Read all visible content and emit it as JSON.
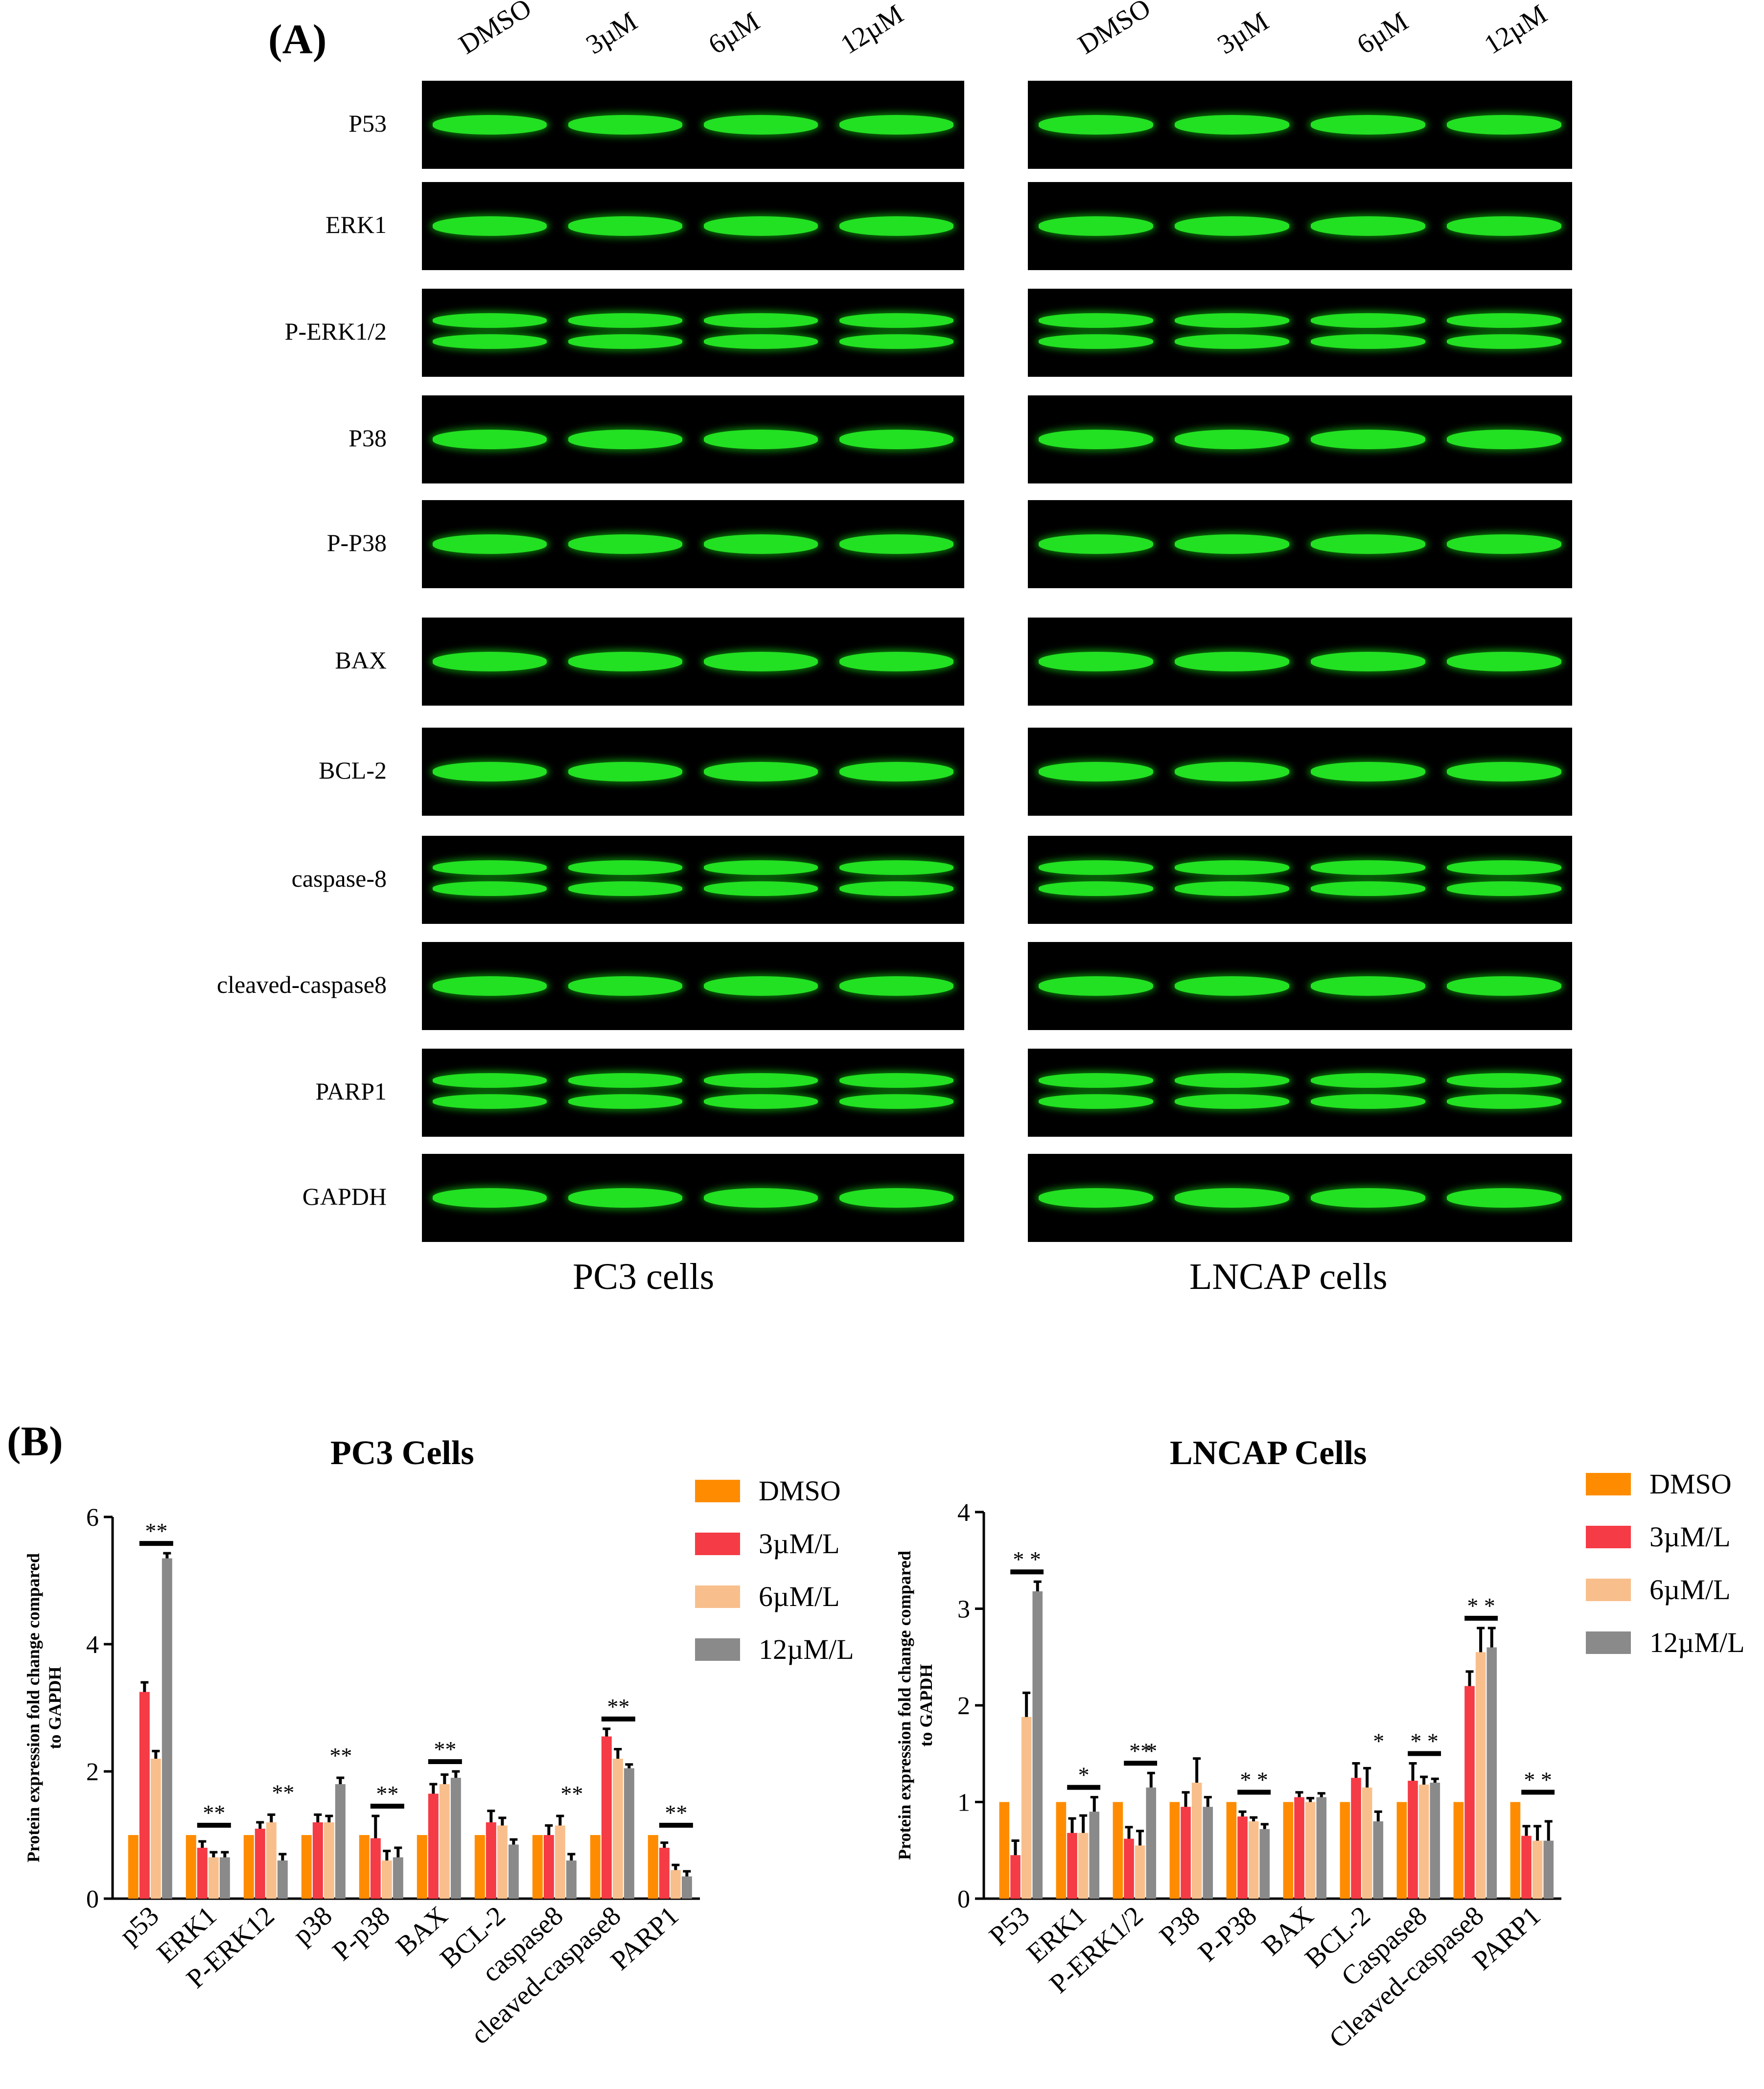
{
  "panel_a": {
    "label": "(A)",
    "lanes": [
      "DMSO",
      "3µM",
      "6µM",
      "12µM"
    ],
    "proteins": [
      "P53",
      "ERK1",
      "P-ERK1/2",
      "P38",
      "P-P38",
      "BAX",
      "BCL-2",
      "caspase-8",
      "cleaved-caspase8",
      "PARP1",
      "GAPDH"
    ],
    "captions": {
      "left": "PC3 cells",
      "right": "LNCAP cells"
    },
    "colors": {
      "band": "#22e022",
      "background": "#000000"
    }
  },
  "panel_b": {
    "label": "(B)"
  },
  "chart_data": [
    {
      "type": "bar",
      "title": "PC3 Cells",
      "ylabel": "Protein expression fold change compared to GAPDH",
      "xlabel": "",
      "ylim": [
        0,
        6
      ],
      "yticks": [
        0,
        2,
        4,
        6
      ],
      "legend_position": "right",
      "categories": [
        "p53",
        "ERK1",
        "P-ERK12",
        "p38",
        "P-p38",
        "BAX",
        "BCL-2",
        "caspase8",
        "cleaved-caspase8",
        "PARP1"
      ],
      "series": [
        {
          "name": "DMSO",
          "color": "#ff8c00",
          "values": [
            1.0,
            1.0,
            1.0,
            1.0,
            1.0,
            1.0,
            1.0,
            1.0,
            1.0,
            1.0
          ],
          "errors": [
            0,
            0,
            0,
            0,
            0,
            0,
            0,
            0,
            0,
            0
          ]
        },
        {
          "name": "3µM/L",
          "color": "#f53b45",
          "values": [
            3.25,
            0.8,
            1.1,
            1.2,
            0.95,
            1.65,
            1.2,
            1.0,
            2.55,
            0.8
          ],
          "errors": [
            0.15,
            0.1,
            0.1,
            0.12,
            0.35,
            0.15,
            0.18,
            0.15,
            0.12,
            0.08
          ]
        },
        {
          "name": "6µM/L",
          "color": "#f8bf8c",
          "values": [
            2.2,
            0.65,
            1.2,
            1.2,
            0.6,
            1.8,
            1.15,
            1.15,
            2.2,
            0.45
          ],
          "errors": [
            0.12,
            0.08,
            0.12,
            0.1,
            0.15,
            0.15,
            0.12,
            0.15,
            0.15,
            0.08
          ]
        },
        {
          "name": "12µM/L",
          "color": "#8a8a8a",
          "values": [
            5.35,
            0.65,
            0.6,
            1.8,
            0.65,
            1.9,
            0.85,
            0.6,
            2.05,
            0.35
          ],
          "errors": [
            0.08,
            0.08,
            0.1,
            0.1,
            0.15,
            0.1,
            0.08,
            0.1,
            0.06,
            0.08
          ]
        }
      ],
      "annotations": [
        {
          "category": "p53",
          "text": "**",
          "bar": true
        },
        {
          "category": "ERK1",
          "text": "**",
          "bar": true
        },
        {
          "category": "P-ERK12",
          "text": "**",
          "bar": false
        },
        {
          "category": "p38",
          "text": "**",
          "bar": false
        },
        {
          "category": "P-p38",
          "text": "**",
          "bar": true
        },
        {
          "category": "BAX",
          "text": "**",
          "bar": true
        },
        {
          "category": "caspase8",
          "text": "**",
          "bar": false
        },
        {
          "category": "cleaved-caspase8",
          "text": "**",
          "bar": true
        },
        {
          "category": "PARP1",
          "text": "**",
          "bar": true
        }
      ]
    },
    {
      "type": "bar",
      "title": "LNCAP Cells",
      "ylabel": "Protein expression fold change compared to GAPDH",
      "xlabel": "",
      "ylim": [
        0,
        4
      ],
      "yticks": [
        0,
        1,
        2,
        3,
        4
      ],
      "legend_position": "right",
      "categories": [
        "P53",
        "ERK1",
        "P-ERK1/2",
        "P38",
        "P-P38",
        "BAX",
        "BCL-2",
        "Caspase8",
        "Cleaved-caspase8",
        "PARP1"
      ],
      "series": [
        {
          "name": "DMSO",
          "color": "#ff8c00",
          "values": [
            1.0,
            1.0,
            1.0,
            1.0,
            1.0,
            1.0,
            1.0,
            1.0,
            1.0,
            1.0
          ],
          "errors": [
            0,
            0,
            0,
            0,
            0,
            0,
            0,
            0,
            0,
            0
          ]
        },
        {
          "name": "3µM/L",
          "color": "#f53b45",
          "values": [
            0.45,
            0.68,
            0.62,
            0.95,
            0.85,
            1.05,
            1.25,
            1.22,
            2.2,
            0.65
          ],
          "errors": [
            0.15,
            0.15,
            0.12,
            0.15,
            0.05,
            0.05,
            0.15,
            0.18,
            0.15,
            0.1
          ]
        },
        {
          "name": "6µM/L",
          "color": "#f8bf8c",
          "values": [
            1.88,
            0.68,
            0.55,
            1.2,
            0.8,
            1.0,
            1.15,
            1.18,
            2.55,
            0.6
          ],
          "errors": [
            0.25,
            0.18,
            0.15,
            0.25,
            0.04,
            0.04,
            0.2,
            0.08,
            0.25,
            0.15
          ]
        },
        {
          "name": "12µM/L",
          "color": "#8a8a8a",
          "values": [
            3.18,
            0.9,
            1.15,
            0.95,
            0.72,
            1.05,
            0.8,
            1.2,
            2.6,
            0.6
          ],
          "errors": [
            0.1,
            0.15,
            0.15,
            0.1,
            0.05,
            0.04,
            0.1,
            0.04,
            0.2,
            0.2
          ]
        }
      ],
      "annotations": [
        {
          "category": "P53",
          "text": "* *",
          "bar": true
        },
        {
          "category": "ERK1",
          "text": "*",
          "bar": true
        },
        {
          "category": "P-ERK1/2",
          "text": "**",
          "bar": true
        },
        {
          "category": "P-ERK1/2",
          "text": "*",
          "bar": false,
          "series": 3
        },
        {
          "category": "P-P38",
          "text": "* *",
          "bar": true
        },
        {
          "category": "BCL-2",
          "text": "*",
          "bar": false
        },
        {
          "category": "Caspase8",
          "text": "* *",
          "bar": true
        },
        {
          "category": "Cleaved-caspase8",
          "text": "* *",
          "bar": true
        },
        {
          "category": "PARP1",
          "text": "* *",
          "bar": true
        }
      ]
    }
  ]
}
